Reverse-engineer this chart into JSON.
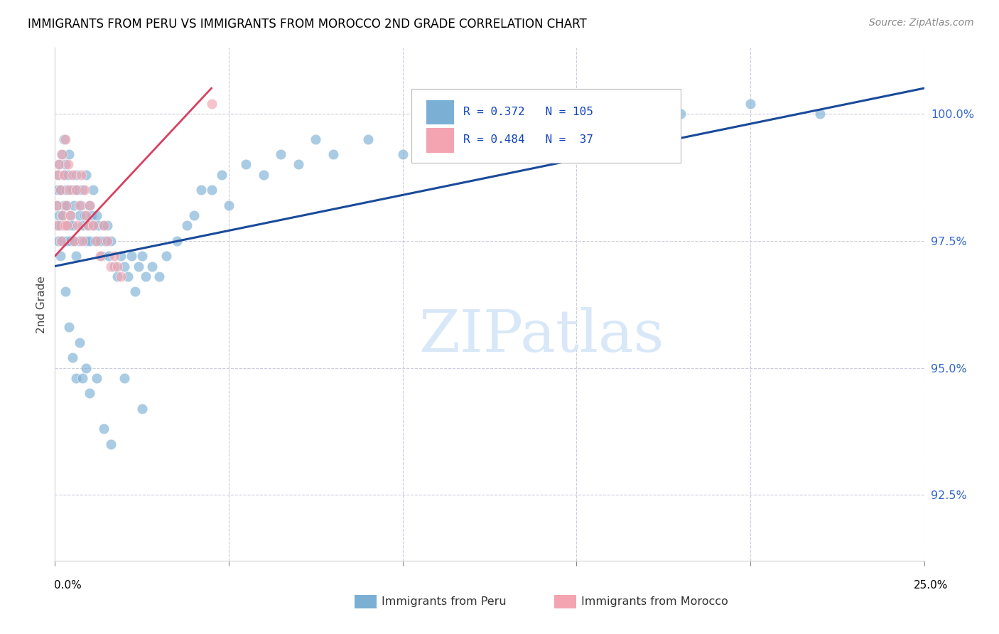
{
  "title": "IMMIGRANTS FROM PERU VS IMMIGRANTS FROM MOROCCO 2ND GRADE CORRELATION CHART",
  "source": "Source: ZipAtlas.com",
  "ylabel": "2nd Grade",
  "xlim": [
    0.0,
    25.0
  ],
  "ylim": [
    91.2,
    101.3
  ],
  "ytick_vals": [
    92.5,
    95.0,
    97.5,
    100.0
  ],
  "legend_blue_r": "0.372",
  "legend_blue_n": "105",
  "legend_pink_r": "0.484",
  "legend_pink_n": "37",
  "blue_color": "#7BAFD4",
  "pink_color": "#F4A4B0",
  "blue_line_color": "#1A4A9A",
  "pink_line_color": "#D94060",
  "peru_x": [
    0.05,
    0.05,
    0.08,
    0.1,
    0.1,
    0.12,
    0.12,
    0.15,
    0.15,
    0.18,
    0.2,
    0.2,
    0.22,
    0.25,
    0.25,
    0.28,
    0.3,
    0.3,
    0.32,
    0.35,
    0.35,
    0.38,
    0.4,
    0.4,
    0.45,
    0.45,
    0.5,
    0.5,
    0.55,
    0.55,
    0.6,
    0.6,
    0.65,
    0.7,
    0.7,
    0.75,
    0.8,
    0.8,
    0.85,
    0.9,
    0.9,
    0.95,
    1.0,
    1.0,
    1.05,
    1.1,
    1.1,
    1.15,
    1.2,
    1.25,
    1.3,
    1.35,
    1.4,
    1.45,
    1.5,
    1.55,
    1.6,
    1.7,
    1.8,
    1.9,
    2.0,
    2.1,
    2.2,
    2.3,
    2.4,
    2.5,
    2.6,
    2.8,
    3.0,
    3.2,
    3.5,
    3.8,
    4.0,
    4.2,
    4.5,
    4.8,
    5.0,
    5.5,
    6.0,
    6.5,
    7.0,
    7.5,
    8.0,
    9.0,
    10.0,
    11.0,
    12.0,
    14.0,
    16.0,
    18.0,
    20.0,
    22.0,
    0.3,
    0.4,
    0.5,
    0.6,
    0.7,
    0.8,
    0.9,
    1.0,
    1.2,
    1.4,
    1.6,
    2.0,
    2.5
  ],
  "peru_y": [
    97.8,
    98.2,
    98.5,
    97.5,
    98.8,
    98.0,
    99.0,
    97.2,
    98.5,
    97.8,
    99.2,
    98.0,
    97.5,
    99.5,
    98.2,
    98.8,
    97.8,
    99.0,
    98.5,
    97.5,
    98.2,
    98.8,
    97.8,
    99.2,
    98.0,
    97.5,
    98.5,
    97.8,
    98.2,
    97.5,
    98.8,
    97.2,
    98.5,
    98.0,
    97.5,
    98.2,
    97.8,
    98.5,
    98.0,
    97.5,
    98.8,
    97.8,
    98.2,
    97.5,
    98.0,
    97.8,
    98.5,
    97.5,
    98.0,
    97.8,
    97.5,
    97.2,
    97.8,
    97.5,
    97.8,
    97.2,
    97.5,
    97.0,
    96.8,
    97.2,
    97.0,
    96.8,
    97.2,
    96.5,
    97.0,
    97.2,
    96.8,
    97.0,
    96.8,
    97.2,
    97.5,
    97.8,
    98.0,
    98.5,
    98.5,
    98.8,
    98.2,
    99.0,
    98.8,
    99.2,
    99.0,
    99.5,
    99.2,
    99.5,
    99.2,
    99.5,
    99.8,
    100.0,
    99.8,
    100.0,
    100.2,
    100.0,
    96.5,
    95.8,
    95.2,
    94.8,
    95.5,
    94.8,
    95.0,
    94.5,
    94.8,
    93.8,
    93.5,
    94.8,
    94.2
  ],
  "morocco_x": [
    0.05,
    0.08,
    0.1,
    0.12,
    0.15,
    0.18,
    0.2,
    0.22,
    0.25,
    0.28,
    0.3,
    0.32,
    0.35,
    0.38,
    0.4,
    0.45,
    0.5,
    0.55,
    0.6,
    0.65,
    0.7,
    0.75,
    0.8,
    0.85,
    0.9,
    0.95,
    1.0,
    1.1,
    1.2,
    1.3,
    1.4,
    1.5,
    1.6,
    1.7,
    1.8,
    1.9,
    4.5
  ],
  "morocco_y": [
    98.2,
    98.8,
    97.8,
    99.0,
    98.5,
    97.5,
    99.2,
    98.0,
    98.8,
    97.8,
    99.5,
    98.2,
    97.8,
    99.0,
    98.5,
    98.0,
    98.8,
    97.5,
    98.5,
    97.8,
    98.2,
    98.8,
    97.5,
    98.5,
    98.0,
    97.8,
    98.2,
    97.8,
    97.5,
    97.2,
    97.8,
    97.5,
    97.0,
    97.2,
    97.0,
    96.8,
    100.2
  ]
}
